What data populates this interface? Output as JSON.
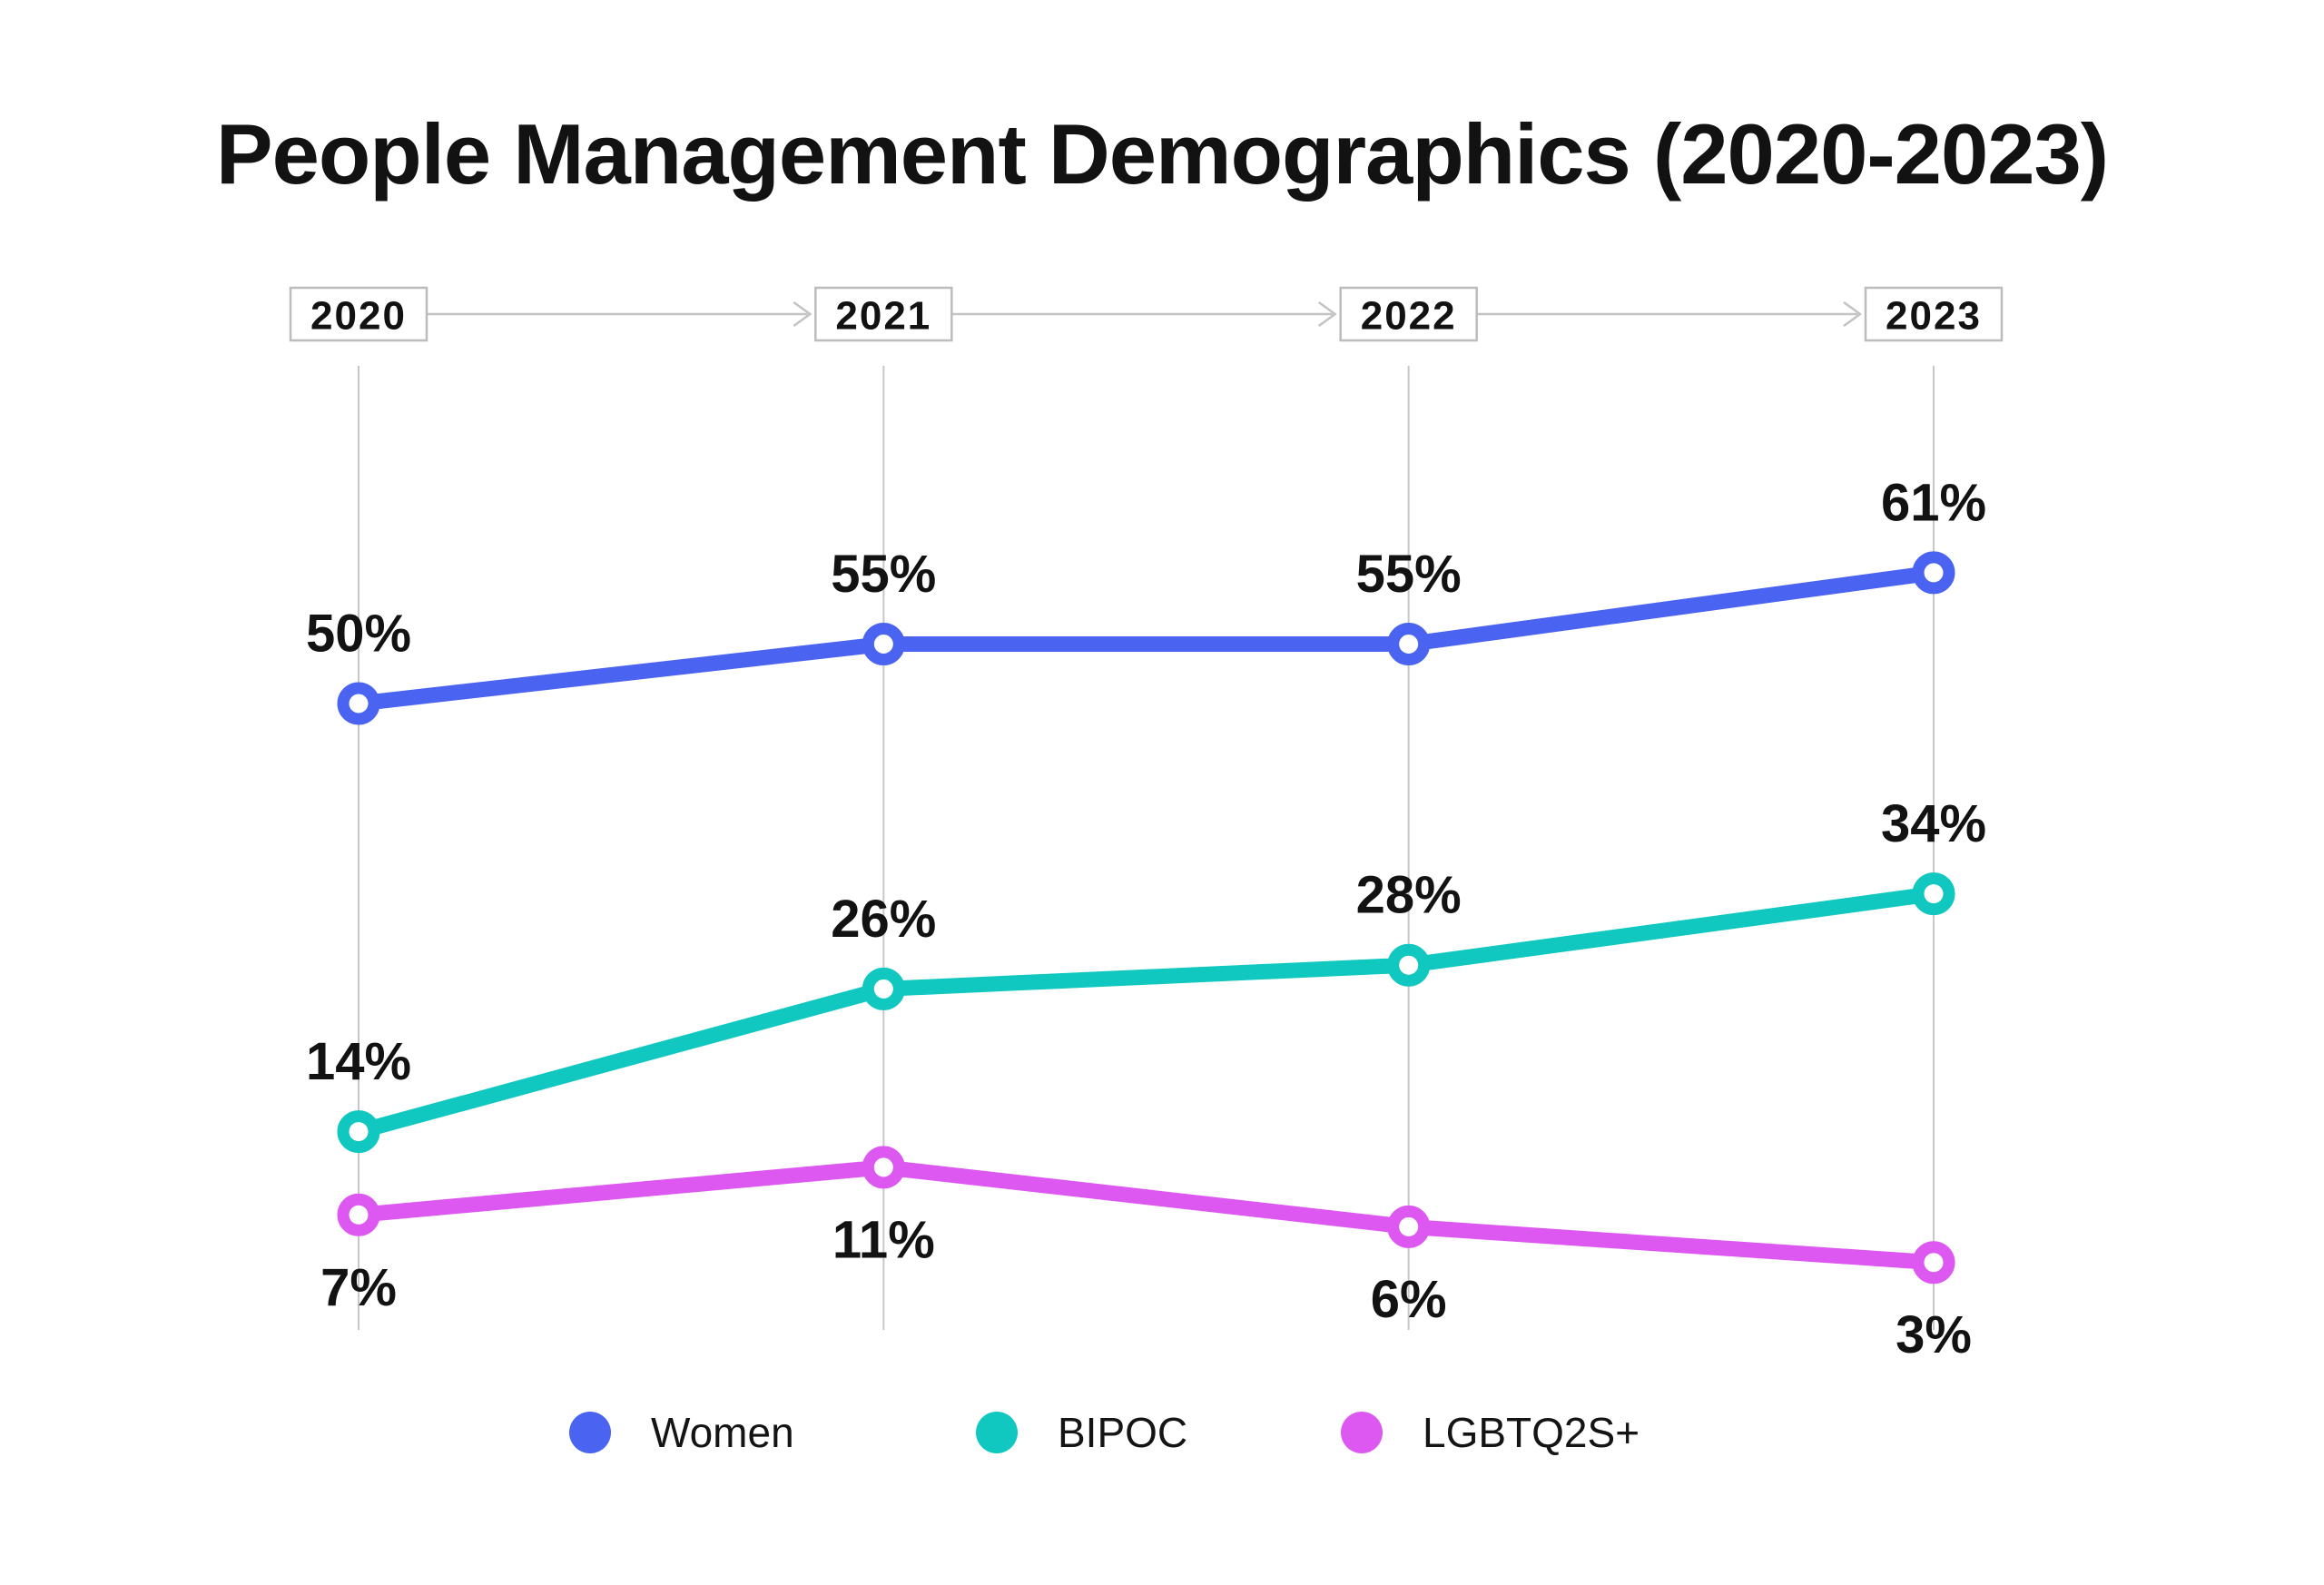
{
  "title": "People Management Demographics (2020-2023)",
  "colors": {
    "background": "#FFFFFF",
    "text": "#121212",
    "grid": "#C7C7C7",
    "box_border": "#BCBCBC",
    "arrow": "#C3C3C3",
    "women": "#4A63F0",
    "bipoc": "#10C8C0",
    "lgbtq2s": "#DD57F1"
  },
  "chart_data": {
    "type": "line",
    "title": "People Management Demographics (2020-2023)",
    "categories": [
      "2020",
      "2021",
      "2022",
      "2023"
    ],
    "series": [
      {
        "name": "Women",
        "color": "#4A63F0",
        "values": [
          50,
          55,
          55,
          61
        ],
        "labels": [
          "50%",
          "55%",
          "55%",
          "61%"
        ],
        "label_position": "above"
      },
      {
        "name": "BIPOC",
        "color": "#10C8C0",
        "values": [
          14,
          26,
          28,
          34
        ],
        "labels": [
          "14%",
          "26%",
          "28%",
          "34%"
        ],
        "label_position": "above"
      },
      {
        "name": "LGBTQ2S+",
        "color": "#DD57F1",
        "values": [
          7,
          11,
          6,
          3
        ],
        "labels": [
          "7%",
          "11%",
          "6%",
          "3%"
        ],
        "label_position": "below"
      }
    ],
    "value_suffix": "%",
    "ylim": [
      0,
      80
    ],
    "grid": "vertical-only",
    "x_axis_style": "boxed-years-with-arrows",
    "marker": "open-circle",
    "legend_position": "bottom"
  }
}
